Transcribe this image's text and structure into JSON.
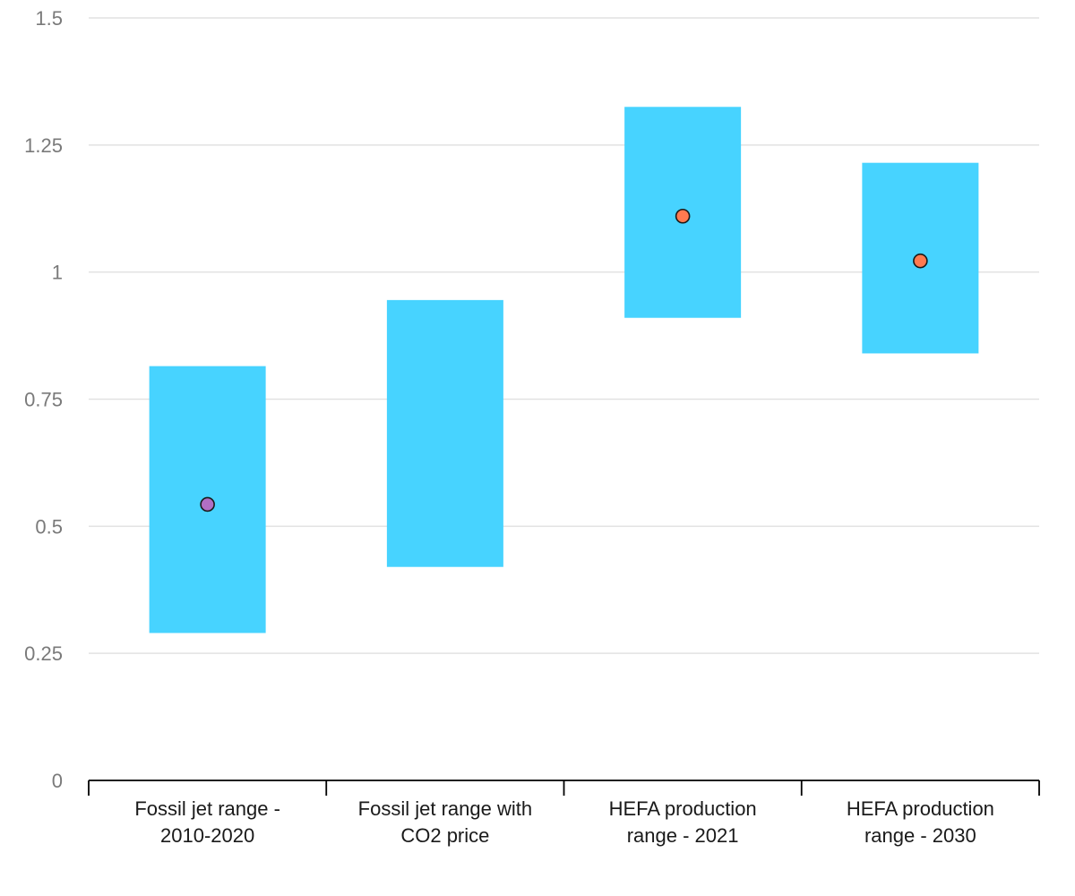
{
  "chart_data": {
    "type": "range-bar",
    "title": "",
    "xlabel": "",
    "ylabel": "",
    "ylim": [
      0,
      1.5
    ],
    "yticks": [
      0,
      0.25,
      0.5,
      0.75,
      1,
      1.25,
      1.5
    ],
    "ytick_labels": [
      "0",
      "0.25",
      "0.5",
      "0.75",
      "1",
      "1.25",
      "1.5"
    ],
    "grid": true,
    "legend": "none",
    "categories": [
      {
        "label_lines": [
          "Fossil jet range -",
          "2010-2020"
        ],
        "low": 0.29,
        "high": 0.815,
        "point": 0.543,
        "point_color": "#b06fc4"
      },
      {
        "label_lines": [
          "Fossil jet range with",
          "CO2 price"
        ],
        "low": 0.42,
        "high": 0.945,
        "point": null,
        "point_color": null
      },
      {
        "label_lines": [
          "HEFA production",
          "range - 2021"
        ],
        "low": 0.91,
        "high": 1.325,
        "point": 1.11,
        "point_color": "#ff7a50"
      },
      {
        "label_lines": [
          "HEFA production",
          "range - 2030"
        ],
        "low": 0.84,
        "high": 1.215,
        "point": 1.022,
        "point_color": "#ff7a50"
      }
    ],
    "colors": {
      "range_bar": "#47d3ff",
      "gridline": "#e2e2e2",
      "axis": "#000000",
      "tick_text": "#7a7a7a",
      "category_text": "#1a1a1a",
      "point_stroke": "#1a1a1a"
    }
  }
}
